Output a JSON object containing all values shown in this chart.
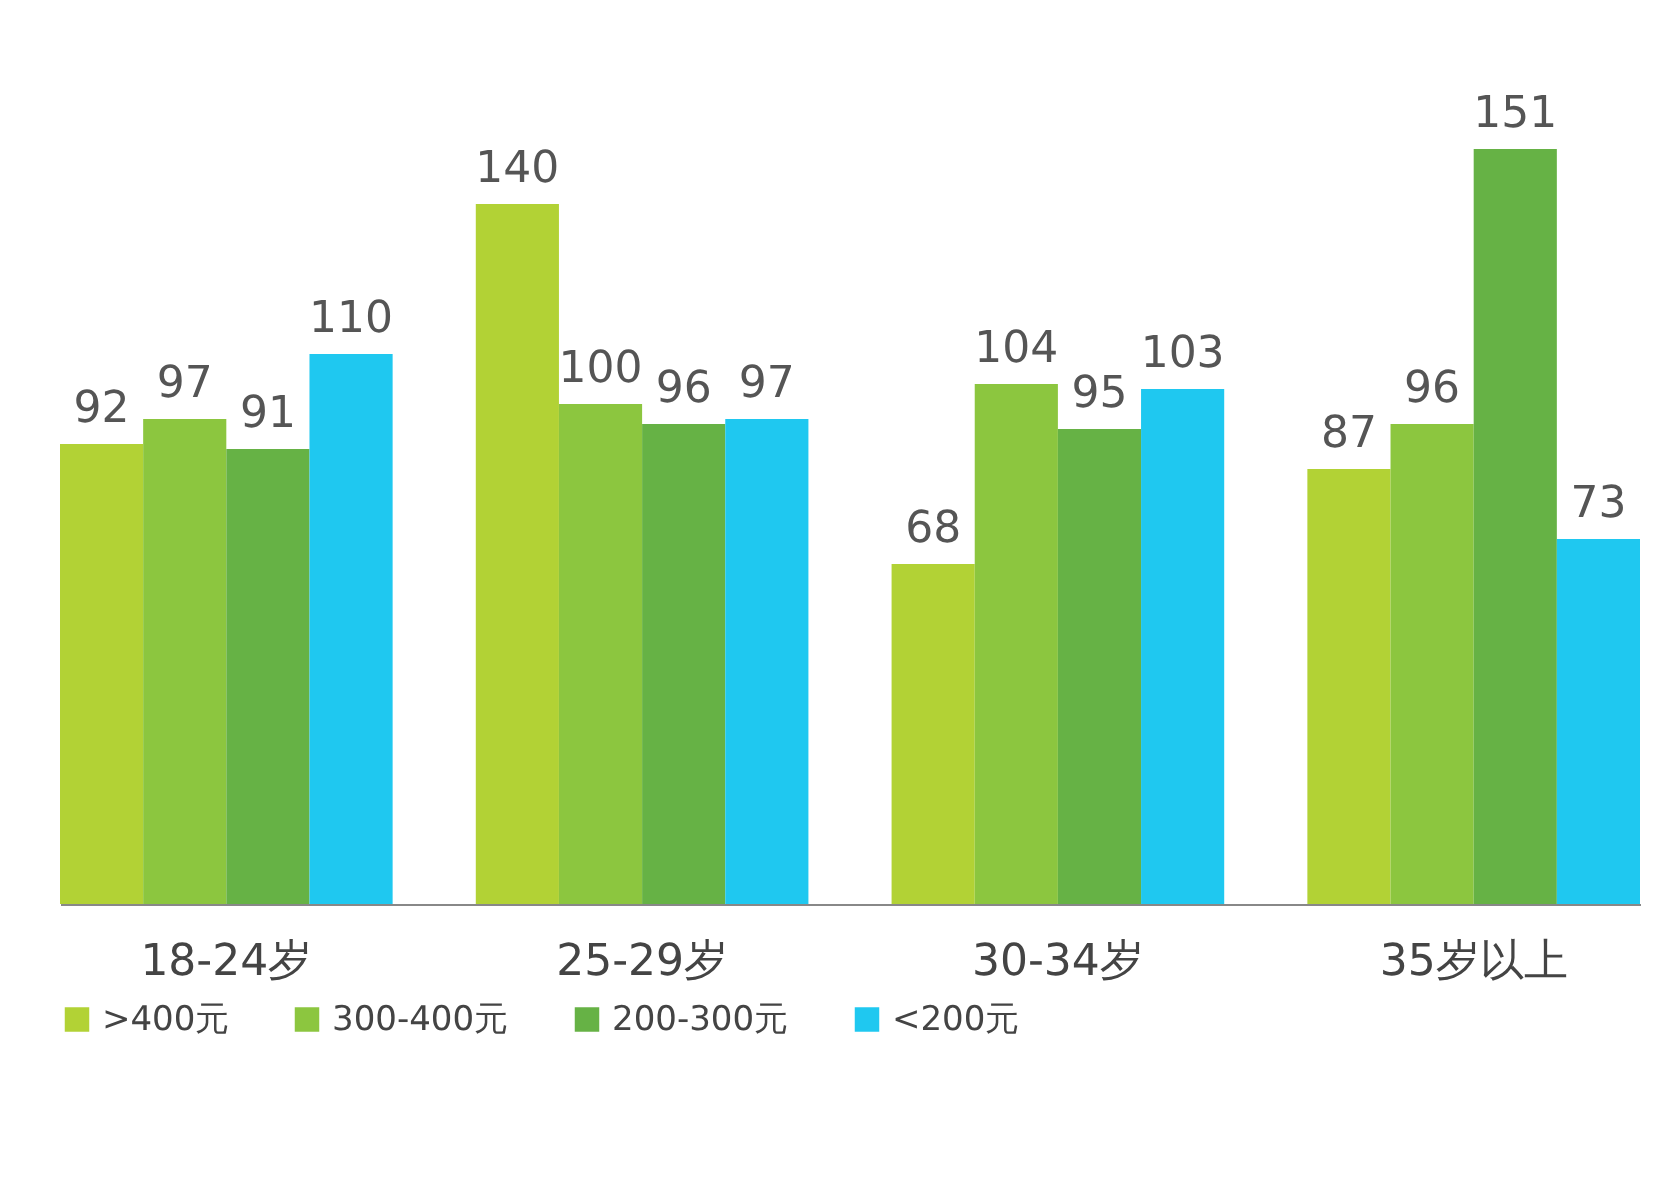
{
  "chart_data": {
    "type": "bar",
    "categories": [
      "18-24岁",
      "25-29岁",
      "30-34岁",
      "35岁以上"
    ],
    "series": [
      {
        "name": ">400元",
        "color": "#b2d235",
        "values": [
          92,
          140,
          68,
          87
        ]
      },
      {
        "name": "300-400元",
        "color": "#8cc63f",
        "values": [
          97,
          100,
          104,
          96
        ]
      },
      {
        "name": "200-300元",
        "color": "#66b245",
        "values": [
          91,
          96,
          95,
          151
        ]
      },
      {
        "name": "<200元",
        "color": "#1fc8f0",
        "values": [
          110,
          97,
          103,
          73
        ]
      }
    ],
    "data_labels": true,
    "legend": "bottom",
    "grid": false
  }
}
